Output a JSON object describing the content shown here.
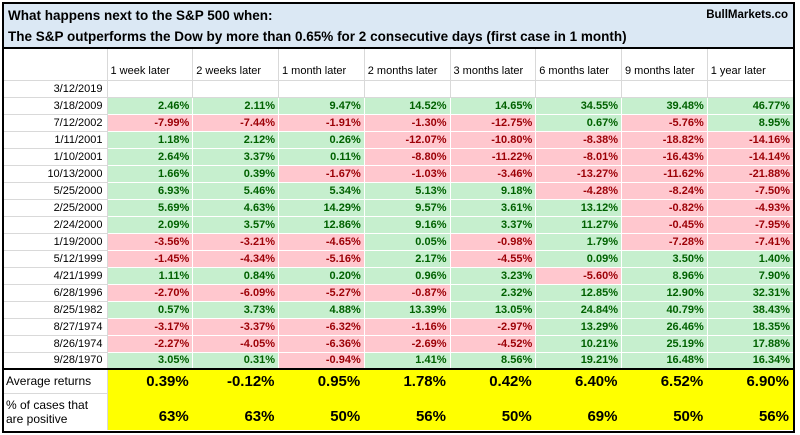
{
  "chart_data": {
    "type": "table",
    "title": "What happens next to the S&P 500 when:",
    "subtitle": "The S&P outperforms the Dow by more than 0.65% for 2 consecutive days (first case in 1 month)",
    "brand": "BullMarkets.co",
    "corner_label": "",
    "columns": [
      "1 week later",
      "2 weeks later",
      "1 month later",
      "2 months later",
      "3 months later",
      "6 months later",
      "9 months later",
      "1 year later"
    ],
    "rows": [
      {
        "date": "3/12/2019",
        "values": [
          "",
          "",
          "",
          "",
          "",
          "",
          "",
          ""
        ]
      },
      {
        "date": "3/18/2009",
        "values": [
          "2.46%",
          "2.11%",
          "9.47%",
          "14.52%",
          "14.65%",
          "34.55%",
          "39.48%",
          "46.77%"
        ]
      },
      {
        "date": "7/12/2002",
        "values": [
          "-7.99%",
          "-7.44%",
          "-1.91%",
          "-1.30%",
          "-12.75%",
          "0.67%",
          "-5.76%",
          "8.95%"
        ]
      },
      {
        "date": "1/11/2001",
        "values": [
          "1.18%",
          "2.12%",
          "0.26%",
          "-12.07%",
          "-10.80%",
          "-8.38%",
          "-18.82%",
          "-14.16%"
        ]
      },
      {
        "date": "1/10/2001",
        "values": [
          "2.64%",
          "3.37%",
          "0.11%",
          "-8.80%",
          "-11.22%",
          "-8.01%",
          "-16.43%",
          "-14.14%"
        ]
      },
      {
        "date": "10/13/2000",
        "values": [
          "1.66%",
          "0.39%",
          "-1.67%",
          "-1.03%",
          "-3.46%",
          "-13.27%",
          "-11.62%",
          "-21.88%"
        ]
      },
      {
        "date": "5/25/2000",
        "values": [
          "6.93%",
          "5.46%",
          "5.34%",
          "5.13%",
          "9.18%",
          "-4.28%",
          "-8.24%",
          "-7.50%"
        ]
      },
      {
        "date": "2/25/2000",
        "values": [
          "5.69%",
          "4.63%",
          "14.29%",
          "9.57%",
          "3.61%",
          "13.12%",
          "-0.82%",
          "-4.93%"
        ]
      },
      {
        "date": "2/24/2000",
        "values": [
          "2.09%",
          "3.57%",
          "12.86%",
          "9.16%",
          "3.37%",
          "11.27%",
          "-0.45%",
          "-7.95%"
        ]
      },
      {
        "date": "1/19/2000",
        "values": [
          "-3.56%",
          "-3.21%",
          "-4.65%",
          "0.05%",
          "-0.98%",
          "1.79%",
          "-7.28%",
          "-7.41%"
        ]
      },
      {
        "date": "5/12/1999",
        "values": [
          "-1.45%",
          "-4.34%",
          "-5.16%",
          "2.17%",
          "-4.55%",
          "0.09%",
          "3.50%",
          "1.40%"
        ]
      },
      {
        "date": "4/21/1999",
        "values": [
          "1.11%",
          "0.84%",
          "0.20%",
          "0.96%",
          "3.23%",
          "-5.60%",
          "8.96%",
          "7.90%"
        ]
      },
      {
        "date": "6/28/1996",
        "values": [
          "-2.70%",
          "-6.09%",
          "-5.27%",
          "-0.87%",
          "2.32%",
          "12.85%",
          "12.90%",
          "32.31%"
        ]
      },
      {
        "date": "8/25/1982",
        "values": [
          "0.57%",
          "3.73%",
          "4.88%",
          "13.39%",
          "13.05%",
          "24.84%",
          "40.79%",
          "38.43%"
        ]
      },
      {
        "date": "8/27/1974",
        "values": [
          "-3.17%",
          "-3.37%",
          "-6.32%",
          "-1.16%",
          "-2.97%",
          "13.29%",
          "26.46%",
          "18.35%"
        ]
      },
      {
        "date": "8/26/1974",
        "values": [
          "-2.27%",
          "-4.05%",
          "-6.36%",
          "-2.69%",
          "-4.52%",
          "10.21%",
          "25.19%",
          "17.88%"
        ]
      },
      {
        "date": "9/28/1970",
        "values": [
          "3.05%",
          "0.31%",
          "-0.94%",
          "1.41%",
          "8.56%",
          "19.21%",
          "16.48%",
          "16.34%"
        ]
      }
    ],
    "summary": {
      "average_label": "Average returns",
      "average_values": [
        "0.39%",
        "-0.12%",
        "0.95%",
        "1.78%",
        "0.42%",
        "6.40%",
        "6.52%",
        "6.90%"
      ],
      "positive_label": "% of cases that are positive",
      "positive_values": [
        "63%",
        "63%",
        "50%",
        "56%",
        "50%",
        "69%",
        "50%",
        "56%"
      ]
    },
    "colors": {
      "title_bg": "#DBE8F4",
      "positive_bg": "#C6EFCE",
      "positive_text": "#006100",
      "negative_bg": "#FFC7CE",
      "negative_text": "#9C0006",
      "summary_bg": "#FFFF00",
      "gridline": "#D9D9D9",
      "border": "#000000"
    }
  }
}
